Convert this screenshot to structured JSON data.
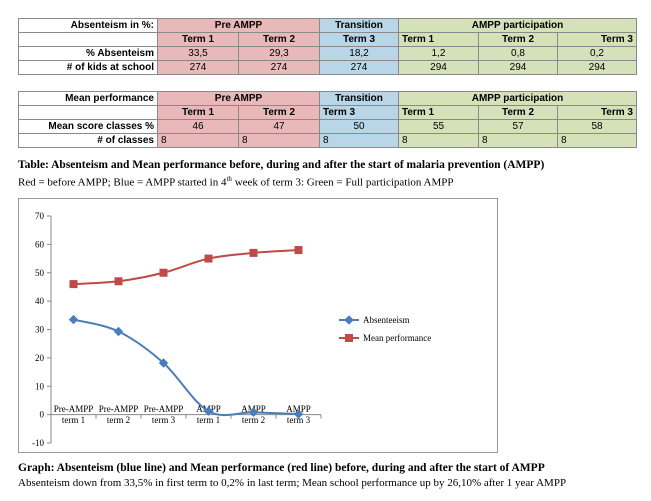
{
  "table1": {
    "corner": "Absenteism in %:",
    "groups": {
      "pre": "Pre  AMPP",
      "transition": "Transition",
      "ampp": "AMPP   participation"
    },
    "terms": [
      "Term 1",
      "Term 2",
      "Term 3",
      "Term 1",
      "Term 2",
      "Term 3"
    ],
    "rows": [
      {
        "label": "% Absenteism",
        "values": [
          "33,5",
          "29,3",
          "18,2",
          "1,2",
          "0,8",
          "0,2"
        ]
      },
      {
        "label": "# of kids at school",
        "values": [
          "274",
          "274",
          "274",
          "294",
          "294",
          "294"
        ]
      }
    ]
  },
  "table2": {
    "corner": "Mean performance",
    "groups": {
      "pre": "Pre  AMPP",
      "transition": "Transition",
      "ampp": "AMPP   participation"
    },
    "terms": [
      "Term 1",
      "Term 2",
      "Term 3",
      "Term 1",
      "Term 2",
      "Term 3"
    ],
    "rows": [
      {
        "label": "Mean score classes %",
        "values": [
          "46",
          "47",
          "50",
          "55",
          "57",
          "58"
        ]
      },
      {
        "label": "#  of classes",
        "values": [
          "8",
          "8",
          "8",
          "8",
          "8",
          "8"
        ]
      }
    ]
  },
  "table_caption": {
    "title": "Table: Absenteism and Mean performance before, during and after the start of malaria prevention (AMPP)",
    "line_prefix": "Red = before AMPP; Blue = AMPP started in 4",
    "line_sup": "th",
    "line_suffix": " week of term 3: Green = Full participation AMPP"
  },
  "chart_data": {
    "type": "line",
    "x": [
      "Pre-AMPP term 1",
      "Pre-AMPP term 2",
      "Pre-AMPP term 3",
      "AMPP term 1",
      "AMPP term 2",
      "AMPP term 3"
    ],
    "x_lines": [
      [
        "Pre-AMPP",
        "term 1"
      ],
      [
        "Pre-AMPP",
        "term 2"
      ],
      [
        "Pre-AMPP",
        "term 3"
      ],
      [
        "AMPP",
        "term 1"
      ],
      [
        "AMPP",
        "term 2"
      ],
      [
        "AMPP",
        "term 3"
      ]
    ],
    "series": [
      {
        "name": "Absenteeism",
        "values": [
          33.5,
          29.3,
          18.2,
          1.2,
          0.8,
          0.2
        ],
        "color": "#4a7ebb",
        "marker": "diamond"
      },
      {
        "name": "Mean performance",
        "values": [
          46,
          47,
          50,
          55,
          57,
          58
        ],
        "color": "#be4b48",
        "marker": "square"
      }
    ],
    "ylim": [
      -10,
      70
    ],
    "yticks": [
      -10,
      0,
      10,
      20,
      30,
      40,
      50,
      60,
      70
    ],
    "grid": false,
    "legend": "right"
  },
  "graph_caption": {
    "title": "Graph: Absenteism (blue line) and Mean performance (red line) before, during and after the start of AMPP",
    "line": "Absenteism down from 33,5% in first term to 0,2% in last term; Mean school performance up by 26,10% after 1 year AMPP"
  }
}
